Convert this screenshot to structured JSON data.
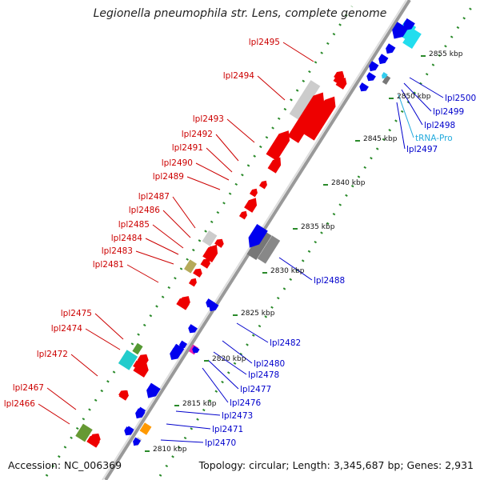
{
  "title": "Legionella pneumophila str. Lens, complete genome",
  "footer": {
    "accession": "Accession: NC_006369",
    "topology": "Topology: circular; Length: 3,345,687 bp; Genes: 2,931"
  },
  "colors": {
    "backbone": "#999999",
    "tick_dot": "#2a8a2a",
    "label_forward": "#cc0000",
    "label_reverse": "#0000cc",
    "label_trna": "#22aadd",
    "kbp_label": "#111111"
  },
  "scale": {
    "unit": "kbp",
    "labels": [
      "2810 kbp",
      "2815 kbp",
      "2820 kbp",
      "2825 kbp",
      "2830 kbp",
      "2835 kbp",
      "2840 kbp",
      "2845 kbp",
      "2850 kbp",
      "2855 kbp"
    ]
  },
  "genes_forward": [
    {
      "name": "lpl2495",
      "color": "#ee0000"
    },
    {
      "name": "lpl2494",
      "color": "#ee0000"
    },
    {
      "name": "lpl2493",
      "color": "#ee0000"
    },
    {
      "name": "lpl2492",
      "color": "#ee0000"
    },
    {
      "name": "lpl2491",
      "color": "#ee0000"
    },
    {
      "name": "lpl2490",
      "color": "#ee0000"
    },
    {
      "name": "lpl2489",
      "color": "#ee0000"
    },
    {
      "name": "lpl2487",
      "color": "#ee0000"
    },
    {
      "name": "lpl2486",
      "color": "#ee0000"
    },
    {
      "name": "lpl2485",
      "color": "#ee0000"
    },
    {
      "name": "lpl2484",
      "color": "#ee0000"
    },
    {
      "name": "lpl2483",
      "color": "#ee0000"
    },
    {
      "name": "lpl2481",
      "color": "#ee0000"
    },
    {
      "name": "lpl2475",
      "color": "#ee0000"
    },
    {
      "name": "lpl2474",
      "color": "#ee0000"
    },
    {
      "name": "lpl2472",
      "color": "#ee0000"
    },
    {
      "name": "lpl2467",
      "color": "#ee0000"
    },
    {
      "name": "lpl2466",
      "color": "#ee0000"
    }
  ],
  "genes_reverse": [
    {
      "name": "lpl2500",
      "color": "#0000ee"
    },
    {
      "name": "lpl2499",
      "color": "#0000ee"
    },
    {
      "name": "lpl2498",
      "color": "#0000ee"
    },
    {
      "name": "tRNA-Pro",
      "color": "#33ccee"
    },
    {
      "name": "lpl2497",
      "color": "#0000ee"
    },
    {
      "name": "lpl2488",
      "color": "#0000ee"
    },
    {
      "name": "lpl2482",
      "color": "#0000ee"
    },
    {
      "name": "lpl2480",
      "color": "#0000ee"
    },
    {
      "name": "lpl2478",
      "color": "#0000ee"
    },
    {
      "name": "lpl2477",
      "color": "#0000ee"
    },
    {
      "name": "lpl2476",
      "color": "#0000ee"
    },
    {
      "name": "lpl2473",
      "color": "#0000ee"
    },
    {
      "name": "lpl2471",
      "color": "#0000ee"
    },
    {
      "name": "lpl2470",
      "color": "#0000ee"
    }
  ]
}
